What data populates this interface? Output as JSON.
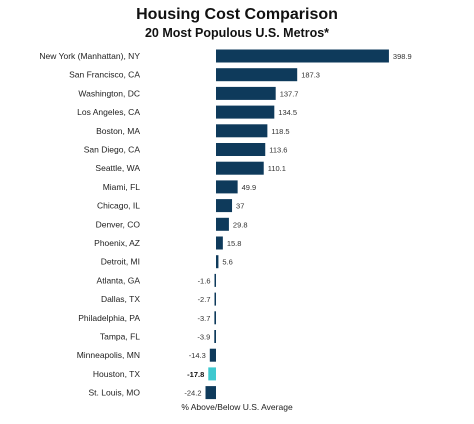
{
  "chart_data": {
    "type": "bar",
    "orientation": "horizontal",
    "title": "Housing Cost Comparison",
    "subtitle": "20 Most Populous U.S. Metros*",
    "xlabel": "% Above/Below U.S. Average",
    "categories": [
      "New York (Manhattan), NY",
      "San Francisco, CA",
      "Washington, DC",
      "Los Angeles, CA",
      "Boston, MA",
      "San Diego, CA",
      "Seattle, WA",
      "Miami, FL",
      "Chicago, IL",
      "Denver, CO",
      "Phoenix, AZ",
      "Detroit, MI",
      "Atlanta, GA",
      "Dallas, TX",
      "Philadelphia, PA",
      "Tampa, FL",
      "Minneapolis, MN",
      "Houston, TX",
      "St. Louis, MO"
    ],
    "values": [
      398.9,
      187.3,
      137.7,
      134.5,
      118.5,
      113.6,
      110.1,
      49.9,
      37,
      29.8,
      15.8,
      5.6,
      -1.6,
      -2.7,
      -3.7,
      -3.9,
      -14.3,
      -17.8,
      -24.2
    ],
    "value_labels": [
      "398.9",
      "187.3",
      "137.7",
      "134.5",
      "118.5",
      "113.6",
      "110.1",
      "49.9",
      "37",
      "29.8",
      "15.8",
      "5.6",
      "-1.6",
      "-2.7",
      "-3.7",
      "-3.9",
      "-14.3",
      "-17.8",
      "-24.2"
    ],
    "highlight_category": "Houston, TX",
    "colors": {
      "bar": "#0e3a5b",
      "highlight": "#3ec8cf"
    },
    "legend": "none",
    "grid": false
  }
}
